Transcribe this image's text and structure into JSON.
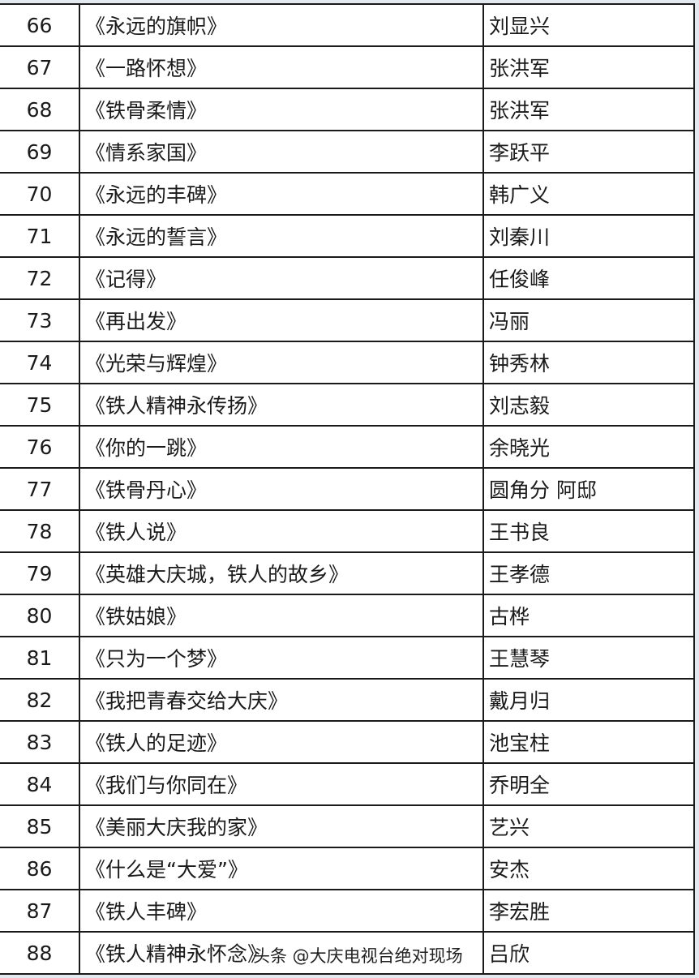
{
  "rows": [
    {
      "no": "66",
      "title": "《永远的旗帜》",
      "author": "刘显兴"
    },
    {
      "no": "67",
      "title": "《一路怀想》",
      "author": "张洪军"
    },
    {
      "no": "68",
      "title": "《铁骨柔情》",
      "author": "张洪军"
    },
    {
      "no": "69",
      "title": "《情系家国》",
      "author": "李跃平"
    },
    {
      "no": "70",
      "title": "《永远的丰碑》",
      "author": "韩广义"
    },
    {
      "no": "71",
      "title": "《永远的誓言》",
      "author": "刘秦川"
    },
    {
      "no": "72",
      "title": "《记得》",
      "author": "任俊峰"
    },
    {
      "no": "73",
      "title": "《再出发》",
      "author": "冯丽"
    },
    {
      "no": "74",
      "title": "《光荣与辉煌》",
      "author": "钟秀林"
    },
    {
      "no": "75",
      "title": "《铁人精神永传扬》",
      "author": "刘志毅"
    },
    {
      "no": "76",
      "title": "《你的一跳》",
      "author": "余晓光"
    },
    {
      "no": "77",
      "title": "《铁骨丹心》",
      "author": "圆角分  阿邸"
    },
    {
      "no": "78",
      "title": "《铁人说》",
      "author": "王书良"
    },
    {
      "no": "79",
      "title": "《英雄大庆城，铁人的故乡》",
      "author": "王孝德"
    },
    {
      "no": "80",
      "title": "《铁姑娘》",
      "author": "古桦"
    },
    {
      "no": "81",
      "title": "《只为一个梦》",
      "author": "王慧琴"
    },
    {
      "no": "82",
      "title": "《我把青春交给大庆》",
      "author": "戴月归"
    },
    {
      "no": "83",
      "title": "《铁人的足迹》",
      "author": "池宝柱"
    },
    {
      "no": "84",
      "title": "《我们与你同在》",
      "author": "乔明全"
    },
    {
      "no": "85",
      "title": "《美丽大庆我的家》",
      "author": "艺兴"
    },
    {
      "no": "86",
      "title": "《什么是“大爱”》",
      "author": "安杰"
    },
    {
      "no": "87",
      "title": "《铁人丰碑》",
      "author": "李宏胜"
    },
    {
      "no": "88",
      "title": "《铁人精神永怀念》",
      "author": "吕欣"
    }
  ],
  "watermark": "头条 @大庆电视台绝对现场"
}
